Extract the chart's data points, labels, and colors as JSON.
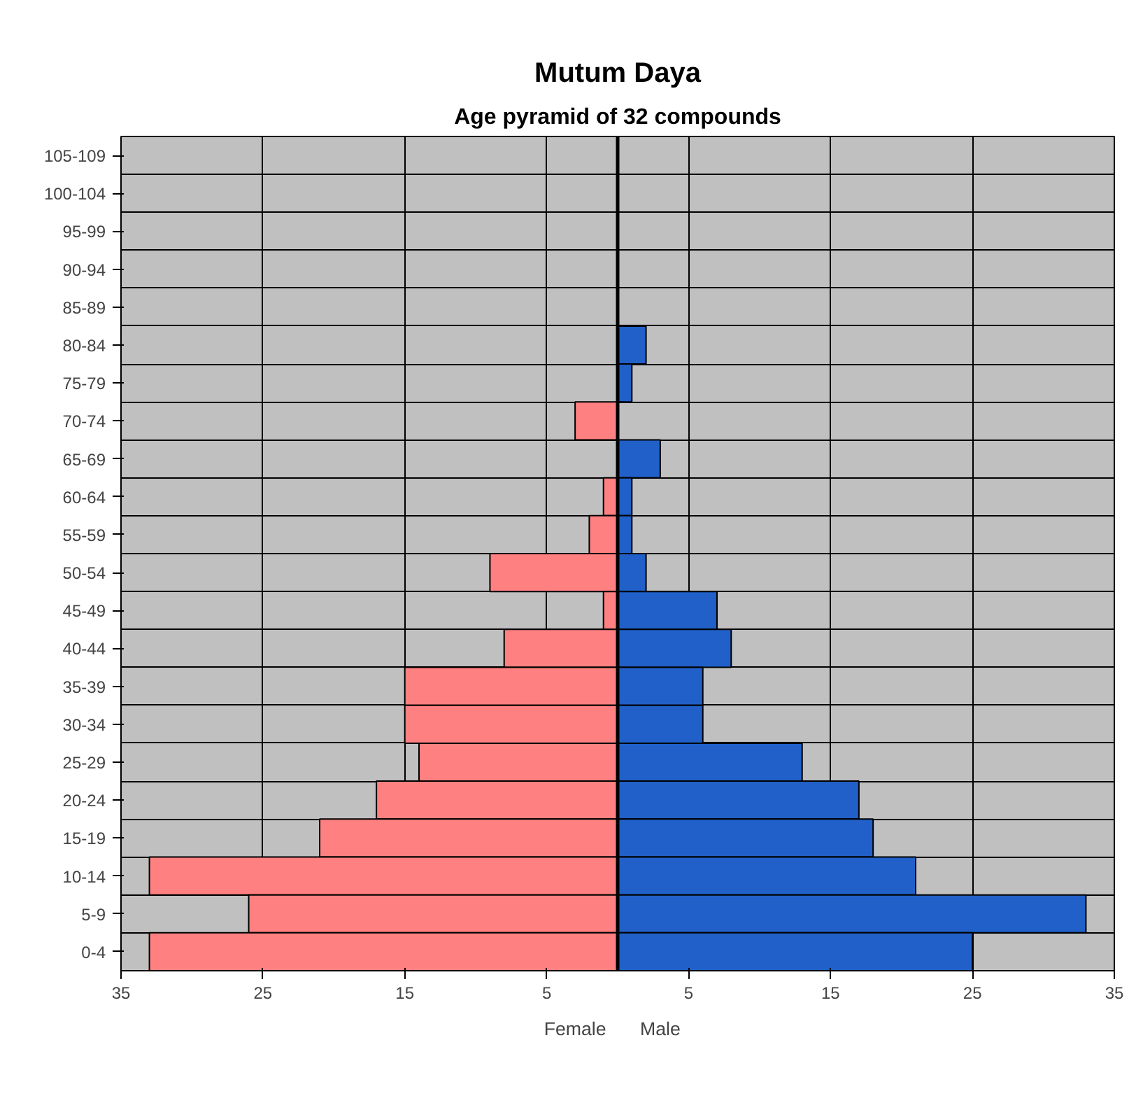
{
  "chart_data": {
    "type": "bar",
    "orientation": "horizontal",
    "title": "Mutum Daya",
    "subtitle": "Age pyramid of 32 compounds",
    "categories": [
      "105-109",
      "100-104",
      "95-99",
      "90-94",
      "85-89",
      "80-84",
      "75-79",
      "70-74",
      "65-69",
      "60-64",
      "55-59",
      "50-54",
      "45-49",
      "40-44",
      "35-39",
      "30-34",
      "25-29",
      "20-24",
      "15-19",
      "10-14",
      "5-9",
      "0-4"
    ],
    "series": [
      {
        "name": "Female",
        "color": "#ff8080",
        "values": [
          null,
          null,
          null,
          null,
          null,
          null,
          null,
          -3,
          null,
          -1,
          -2,
          -9,
          -1,
          -8,
          -15,
          -15,
          -14,
          -17,
          -21,
          -33,
          -26,
          -33
        ]
      },
      {
        "name": "Male",
        "color": "#2060c8",
        "values": [
          null,
          null,
          null,
          null,
          null,
          2,
          1,
          null,
          3,
          1,
          1,
          2,
          7,
          8,
          6,
          6,
          13,
          17,
          18,
          21,
          33,
          25
        ]
      }
    ],
    "xlim": [
      -35,
      35
    ],
    "xticks": [
      {
        "value": -35,
        "label": "35"
      },
      {
        "value": -25,
        "label": "25"
      },
      {
        "value": -15,
        "label": "15"
      },
      {
        "value": -5,
        "label": "5"
      },
      5,
      15,
      25,
      35
    ],
    "grid": true,
    "ref_lines": [
      {
        "axis": "x",
        "value": 0,
        "color": "#000000"
      }
    ],
    "stacked": true
  }
}
